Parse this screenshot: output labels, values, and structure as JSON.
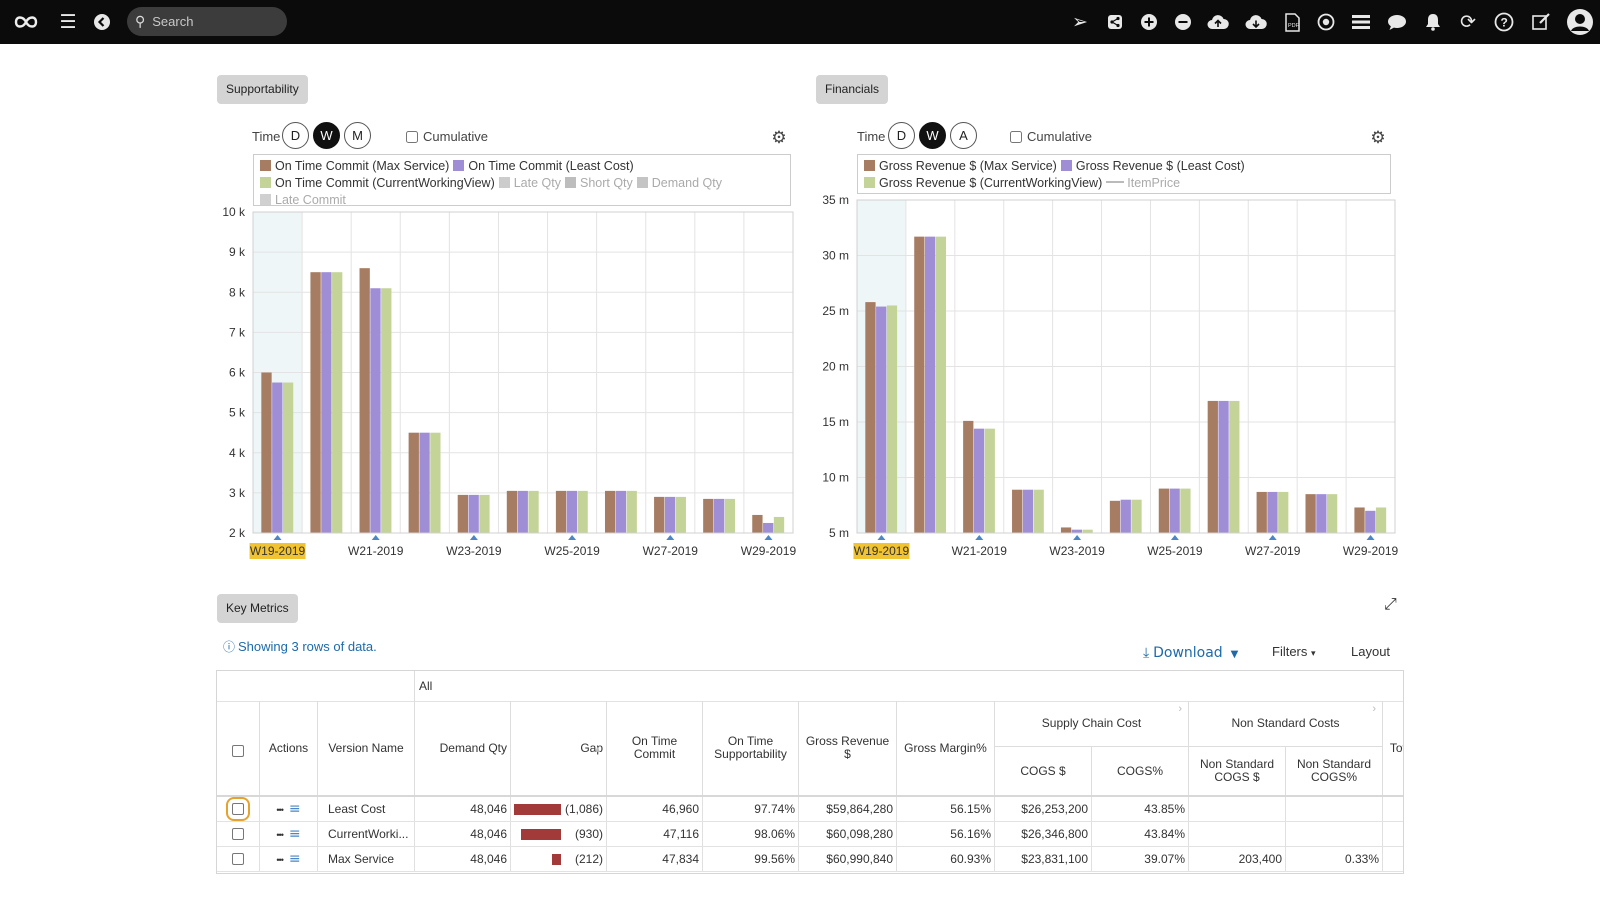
{
  "topbar": {
    "search_placeholder": "Search",
    "icons": [
      "logo-icon",
      "hamburger-icon",
      "back-icon",
      "send-icon",
      "share-icon",
      "plus-circle-icon",
      "minus-circle-icon",
      "cloud-upload-icon",
      "cloud-download-icon",
      "pdf-icon",
      "target-icon",
      "list-icon",
      "chat-icon",
      "bell-icon",
      "refresh-icon",
      "help-icon",
      "edit-icon",
      "user-icon"
    ]
  },
  "supportability": {
    "tab_label": "Supportability",
    "time_label": "Time",
    "time_buttons": [
      "D",
      "W",
      "M"
    ],
    "active_time": "W",
    "cumulative_label": "Cumulative",
    "legend": [
      {
        "label": "On Time Commit (Max Service)",
        "color": "#a67c62",
        "dim": false
      },
      {
        "label": "On Time Commit (Least Cost)",
        "color": "#9f8dd6",
        "dim": false
      },
      {
        "label": "On Time Commit (CurrentWorkingView)",
        "color": "#c4d499",
        "dim": false
      },
      {
        "label": "Late Qty",
        "color": "#cccccc",
        "dim": true
      },
      {
        "label": "Short Qty",
        "color": "#bdbdbd",
        "dim": true
      },
      {
        "label": "Demand Qty",
        "color": "#c4c4c4",
        "dim": true
      },
      {
        "label": "Late Commit",
        "color": "#d0d0d0",
        "dim": true
      }
    ]
  },
  "financials": {
    "tab_label": "Financials",
    "time_label": "Time",
    "time_buttons": [
      "D",
      "W",
      "A"
    ],
    "active_time": "W",
    "cumulative_label": "Cumulative",
    "legend": [
      {
        "label": "Gross Revenue $ (Max Service)",
        "color": "#a67c62",
        "dim": false,
        "line": false
      },
      {
        "label": "Gross Revenue $ (Least Cost)",
        "color": "#9f8dd6",
        "dim": false,
        "line": false
      },
      {
        "label": "Gross Revenue $ (CurrentWorkingView)",
        "color": "#c4d499",
        "dim": false,
        "line": false
      },
      {
        "label": "ItemPrice",
        "color": "#bbbbbb",
        "dim": true,
        "line": true
      }
    ]
  },
  "chart_data": [
    {
      "type": "bar",
      "categories": [
        "W19-2019",
        "W20-2019",
        "W21-2019",
        "W22-2019",
        "W23-2019",
        "W24-2019",
        "W25-2019",
        "W26-2019",
        "W27-2019",
        "W28-2019",
        "W29-2019"
      ],
      "tick_labels": [
        "W19-2019",
        "W21-2019",
        "W23-2019",
        "W25-2019",
        "W27-2019",
        "W29-2019"
      ],
      "highlight_category": "W19-2019",
      "y_ticks": [
        "2 k",
        "3 k",
        "4 k",
        "5 k",
        "6 k",
        "7 k",
        "8 k",
        "9 k",
        "10 k"
      ],
      "ylim": [
        2000,
        10000
      ],
      "series": [
        {
          "name": "On Time Commit (Max Service)",
          "color": "#a67c62",
          "values": [
            6000,
            8500,
            8600,
            4500,
            2950,
            3050,
            3050,
            3050,
            2900,
            2850,
            2450
          ]
        },
        {
          "name": "On Time Commit (Least Cost)",
          "color": "#9f8dd6",
          "values": [
            5750,
            8500,
            8100,
            4500,
            2950,
            3050,
            3050,
            3050,
            2900,
            2850,
            2250
          ]
        },
        {
          "name": "On Time Commit (CurrentWorkingView)",
          "color": "#c4d499",
          "values": [
            5750,
            8500,
            8100,
            4500,
            2950,
            3050,
            3050,
            3050,
            2900,
            2850,
            2400
          ]
        }
      ]
    },
    {
      "type": "bar",
      "categories": [
        "W19-2019",
        "W20-2019",
        "W21-2019",
        "W22-2019",
        "W23-2019",
        "W24-2019",
        "W25-2019",
        "W26-2019",
        "W27-2019",
        "W28-2019",
        "W29-2019"
      ],
      "tick_labels": [
        "W19-2019",
        "W21-2019",
        "W23-2019",
        "W25-2019",
        "W27-2019",
        "W29-2019"
      ],
      "highlight_category": "W19-2019",
      "y_ticks": [
        "5 m",
        "10 m",
        "15 m",
        "20 m",
        "25 m",
        "30 m",
        "35 m"
      ],
      "ylim": [
        5000000,
        35000000
      ],
      "series": [
        {
          "name": "Gross Revenue $ (Max Service)",
          "color": "#a67c62",
          "values": [
            25800000,
            31700000,
            15100000,
            8900000,
            5500000,
            7900000,
            9000000,
            16900000,
            8700000,
            8500000,
            7300000
          ]
        },
        {
          "name": "Gross Revenue $ (Least Cost)",
          "color": "#9f8dd6",
          "values": [
            25400000,
            31700000,
            14400000,
            8900000,
            5300000,
            8000000,
            9000000,
            16900000,
            8700000,
            8500000,
            7000000
          ]
        },
        {
          "name": "Gross Revenue $ (CurrentWorkingView)",
          "color": "#c4d499",
          "values": [
            25500000,
            31700000,
            14400000,
            8900000,
            5300000,
            8000000,
            9000000,
            16900000,
            8700000,
            8500000,
            7300000
          ]
        }
      ]
    }
  ],
  "key_metrics": {
    "tab_label": "Key Metrics",
    "info_text": "Showing 3 rows of data.",
    "download_label": "Download",
    "filters_label": "Filters",
    "layout_label": "Layout",
    "group_all": "All",
    "group_supply": "Supply Chain Cost",
    "group_nonstd": "Non Standard Costs",
    "columns": [
      "Actions",
      "Version Name",
      "Demand Qty",
      "Gap",
      "On Time Commit",
      "On Time Supportability",
      "Gross Revenue $",
      "Gross Margin%",
      "COGS $",
      "COGS%",
      "Non Standard COGS $",
      "Non Standard COGS%",
      "Total"
    ],
    "rows": [
      {
        "version": "Least Cost",
        "demand": "48,046",
        "gap": "(1,086)",
        "gap_value": 1086,
        "otc": "46,960",
        "ots": "97.74%",
        "rev": "$59,864,280",
        "margin": "56.15%",
        "cogs": "$26,253,200",
        "cogs_pct": "43.85%",
        "ns_cogs": "",
        "ns_pct": ""
      },
      {
        "version": "CurrentWorki...",
        "demand": "48,046",
        "gap": "(930)",
        "gap_value": 930,
        "otc": "47,116",
        "ots": "98.06%",
        "rev": "$60,098,280",
        "margin": "56.16%",
        "cogs": "$26,346,800",
        "cogs_pct": "43.84%",
        "ns_cogs": "",
        "ns_pct": ""
      },
      {
        "version": "Max Service",
        "demand": "48,046",
        "gap": "(212)",
        "gap_value": 212,
        "otc": "47,834",
        "ots": "99.56%",
        "rev": "$60,990,840",
        "margin": "60.93%",
        "cogs": "$23,831,100",
        "cogs_pct": "39.07%",
        "ns_cogs": "203,400",
        "ns_pct": "0.33%"
      }
    ]
  }
}
